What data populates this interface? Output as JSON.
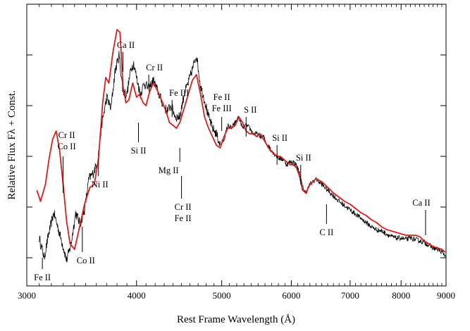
{
  "chart_data": {
    "type": "line",
    "title": "",
    "xlabel": "Rest Frame Wavelength (Å)",
    "ylabel": "Relative Flux Fλ + Const.",
    "x_scale": "log",
    "xlim": [
      3000,
      9000
    ],
    "ylim": [
      0,
      10
    ],
    "y_tick_labels_shown": false,
    "x_ticks": [
      3000,
      4000,
      5000,
      6000,
      7000,
      8000,
      9000
    ],
    "x_tick_labels": [
      "3000",
      "4000",
      "5000",
      "6000",
      "7000",
      "8000",
      "9000"
    ],
    "y_ticks": [
      1.0,
      2.8,
      4.6,
      6.4,
      8.2
    ],
    "grid": false,
    "series": [
      {
        "color": "#000000",
        "style": "noisy-observed",
        "points": [
          [
            3100,
            1.7
          ],
          [
            3140,
            1.0
          ],
          [
            3180,
            1.9
          ],
          [
            3220,
            2.6
          ],
          [
            3260,
            2.0
          ],
          [
            3300,
            1.4
          ],
          [
            3330,
            0.9
          ],
          [
            3370,
            1.5
          ],
          [
            3410,
            2.6
          ],
          [
            3450,
            2.2
          ],
          [
            3490,
            2.7
          ],
          [
            3530,
            3.8
          ],
          [
            3570,
            4.0
          ],
          [
            3610,
            4.4
          ],
          [
            3650,
            5.7
          ],
          [
            3700,
            6.7
          ],
          [
            3740,
            6.3
          ],
          [
            3780,
            7.6
          ],
          [
            3820,
            8.2
          ],
          [
            3860,
            6.9
          ],
          [
            3900,
            6.8
          ],
          [
            3940,
            7.7
          ],
          [
            3970,
            7.9
          ],
          [
            4000,
            7.4
          ],
          [
            4040,
            6.8
          ],
          [
            4080,
            7.2
          ],
          [
            4130,
            7.0
          ],
          [
            4180,
            7.3
          ],
          [
            4230,
            6.9
          ],
          [
            4280,
            6.5
          ],
          [
            4330,
            6.2
          ],
          [
            4380,
            6.4
          ],
          [
            4430,
            6.0
          ],
          [
            4480,
            6.0
          ],
          [
            4530,
            6.8
          ],
          [
            4580,
            7.2
          ],
          [
            4630,
            7.7
          ],
          [
            4680,
            8.2
          ],
          [
            4730,
            7.1
          ],
          [
            4780,
            6.6
          ],
          [
            4830,
            6.0
          ],
          [
            4880,
            5.6
          ],
          [
            4930,
            5.4
          ],
          [
            4980,
            5.0
          ],
          [
            5030,
            5.2
          ],
          [
            5080,
            5.7
          ],
          [
            5130,
            5.6
          ],
          [
            5180,
            5.8
          ],
          [
            5230,
            6.0
          ],
          [
            5280,
            5.6
          ],
          [
            5330,
            5.7
          ],
          [
            5380,
            5.6
          ],
          [
            5430,
            5.4
          ],
          [
            5480,
            5.4
          ],
          [
            5530,
            5.3
          ],
          [
            5580,
            5.3
          ],
          [
            5630,
            5.0
          ],
          [
            5680,
            4.9
          ],
          [
            5730,
            4.7
          ],
          [
            5780,
            4.6
          ],
          [
            5830,
            4.5
          ],
          [
            5880,
            4.5
          ],
          [
            5930,
            4.3
          ],
          [
            5980,
            4.4
          ],
          [
            6030,
            4.4
          ],
          [
            6080,
            4.3
          ],
          [
            6130,
            4.0
          ],
          [
            6180,
            3.5
          ],
          [
            6230,
            3.3
          ],
          [
            6300,
            3.6
          ],
          [
            6400,
            3.8
          ],
          [
            6500,
            3.6
          ],
          [
            6600,
            3.4
          ],
          [
            6700,
            3.2
          ],
          [
            6800,
            3.0
          ],
          [
            6900,
            2.85
          ],
          [
            7000,
            2.7
          ],
          [
            7100,
            2.55
          ],
          [
            7200,
            2.4
          ],
          [
            7300,
            2.25
          ],
          [
            7400,
            2.1
          ],
          [
            7500,
            2.0
          ],
          [
            7600,
            1.95
          ],
          [
            7700,
            1.85
          ],
          [
            7800,
            1.75
          ],
          [
            7900,
            1.7
          ],
          [
            8000,
            1.7
          ],
          [
            8100,
            1.65
          ],
          [
            8200,
            1.7
          ],
          [
            8300,
            1.65
          ],
          [
            8400,
            1.6
          ],
          [
            8500,
            1.55
          ],
          [
            8600,
            1.45
          ],
          [
            8700,
            1.35
          ],
          [
            8800,
            1.3
          ],
          [
            8900,
            1.2
          ],
          [
            8980,
            1.1
          ]
        ]
      },
      {
        "color": "#d81e1e",
        "style": "smooth-model",
        "points": [
          [
            3080,
            3.4
          ],
          [
            3110,
            3.0
          ],
          [
            3150,
            3.6
          ],
          [
            3180,
            4.5
          ],
          [
            3210,
            5.2
          ],
          [
            3240,
            5.5
          ],
          [
            3270,
            4.8
          ],
          [
            3300,
            3.6
          ],
          [
            3330,
            2.3
          ],
          [
            3360,
            1.5
          ],
          [
            3400,
            1.3
          ],
          [
            3440,
            2.0
          ],
          [
            3490,
            2.9
          ],
          [
            3540,
            3.5
          ],
          [
            3580,
            3.6
          ],
          [
            3620,
            4.5
          ],
          [
            3660,
            6.5
          ],
          [
            3690,
            7.4
          ],
          [
            3720,
            7.2
          ],
          [
            3760,
            8.3
          ],
          [
            3800,
            9.1
          ],
          [
            3830,
            9.0
          ],
          [
            3860,
            7.1
          ],
          [
            3890,
            6.5
          ],
          [
            3920,
            6.6
          ],
          [
            3960,
            7.2
          ],
          [
            4000,
            6.7
          ],
          [
            4030,
            6.8
          ],
          [
            4070,
            6.5
          ],
          [
            4100,
            6.4
          ],
          [
            4140,
            6.9
          ],
          [
            4180,
            7.2
          ],
          [
            4230,
            6.9
          ],
          [
            4270,
            6.6
          ],
          [
            4320,
            6.2
          ],
          [
            4360,
            5.8
          ],
          [
            4400,
            5.7
          ],
          [
            4440,
            5.6
          ],
          [
            4480,
            5.8
          ],
          [
            4530,
            6.3
          ],
          [
            4580,
            6.8
          ],
          [
            4630,
            7.3
          ],
          [
            4680,
            7.5
          ],
          [
            4730,
            6.8
          ],
          [
            4780,
            6.0
          ],
          [
            4830,
            5.6
          ],
          [
            4880,
            5.3
          ],
          [
            4930,
            5.0
          ],
          [
            4980,
            4.9
          ],
          [
            5030,
            5.3
          ],
          [
            5080,
            5.6
          ],
          [
            5130,
            5.6
          ],
          [
            5180,
            5.7
          ],
          [
            5230,
            6.0
          ],
          [
            5280,
            5.8
          ],
          [
            5330,
            5.5
          ],
          [
            5380,
            5.4
          ],
          [
            5430,
            5.4
          ],
          [
            5480,
            5.3
          ],
          [
            5530,
            5.4
          ],
          [
            5580,
            5.2
          ],
          [
            5630,
            5.0
          ],
          [
            5680,
            4.8
          ],
          [
            5730,
            4.7
          ],
          [
            5780,
            4.6
          ],
          [
            5830,
            4.6
          ],
          [
            5880,
            4.5
          ],
          [
            5930,
            4.4
          ],
          [
            5980,
            4.3
          ],
          [
            6030,
            4.3
          ],
          [
            6080,
            4.2
          ],
          [
            6130,
            3.9
          ],
          [
            6180,
            3.4
          ],
          [
            6230,
            3.3
          ],
          [
            6300,
            3.6
          ],
          [
            6400,
            3.8
          ],
          [
            6500,
            3.7
          ],
          [
            6600,
            3.5
          ],
          [
            6700,
            3.3
          ],
          [
            6800,
            3.15
          ],
          [
            6900,
            3.0
          ],
          [
            7000,
            2.9
          ],
          [
            7100,
            2.75
          ],
          [
            7200,
            2.6
          ],
          [
            7300,
            2.5
          ],
          [
            7400,
            2.35
          ],
          [
            7500,
            2.25
          ],
          [
            7600,
            2.1
          ],
          [
            7700,
            2.0
          ],
          [
            7800,
            1.95
          ],
          [
            7900,
            1.9
          ],
          [
            8000,
            1.85
          ],
          [
            8100,
            1.8
          ],
          [
            8200,
            1.8
          ],
          [
            8300,
            1.8
          ],
          [
            8400,
            1.75
          ],
          [
            8500,
            1.6
          ],
          [
            8600,
            1.5
          ],
          [
            8700,
            1.4
          ],
          [
            8800,
            1.35
          ],
          [
            8900,
            1.3
          ],
          [
            8980,
            1.2
          ]
        ]
      }
    ],
    "annotations": [
      {
        "text": "Fe II",
        "wavelength": 3125,
        "tick_top": 1.0,
        "tick_bottom": 0.6
      },
      {
        "text": "Cr II",
        "wavelength": 3300,
        "tick_top": 4.6,
        "tick_bottom": 3.3
      },
      {
        "text": "Co II",
        "wavelength": 3300,
        "tick_top": 4.6,
        "tick_bottom": 3.3
      },
      {
        "text": "Co II",
        "wavelength": 3470,
        "tick_top": 2.1,
        "tick_bottom": 1.2
      },
      {
        "text": "Ni II",
        "wavelength": 3620,
        "tick_top": 4.5,
        "tick_bottom": 3.9
      },
      {
        "text": "Ca II",
        "wavelength": 3860,
        "tick_top": 8.3,
        "tick_bottom": 7.6
      },
      {
        "text": "Cr II",
        "wavelength": 4130,
        "tick_top": 7.5,
        "tick_bottom": 7.0
      },
      {
        "text": "Si II",
        "wavelength": 4020,
        "tick_top": 5.8,
        "tick_bottom": 5.1
      },
      {
        "text": "Fe III",
        "wavelength": 4390,
        "tick_top": 6.6,
        "tick_bottom": 6.0
      },
      {
        "text": "Mg II",
        "wavelength": 4480,
        "tick_top": 4.9,
        "tick_bottom": 4.4
      },
      {
        "text": "Cr II",
        "wavelength": 4500,
        "tick_top": 3.9,
        "tick_bottom": 3.1
      },
      {
        "text": "Fe II",
        "wavelength": 4500,
        "tick_top": 3.9,
        "tick_bottom": 3.1
      },
      {
        "text": "Fe II",
        "wavelength": 5000,
        "tick_top": 6.0,
        "tick_bottom": 5.5
      },
      {
        "text": "Fe III",
        "wavelength": 5000,
        "tick_top": 6.0,
        "tick_bottom": 5.5
      },
      {
        "text": "S II",
        "wavelength": 5330,
        "tick_top": 6.0,
        "tick_bottom": 5.3
      },
      {
        "text": "Si II",
        "wavelength": 5780,
        "tick_top": 5.0,
        "tick_bottom": 4.3
      },
      {
        "text": "Si II",
        "wavelength": 6150,
        "tick_top": 4.3,
        "tick_bottom": 3.6
      },
      {
        "text": "C II",
        "wavelength": 6580,
        "tick_top": 2.9,
        "tick_bottom": 2.2
      },
      {
        "text": "Ca II",
        "wavelength": 8530,
        "tick_top": 2.7,
        "tick_bottom": 1.8
      }
    ]
  }
}
